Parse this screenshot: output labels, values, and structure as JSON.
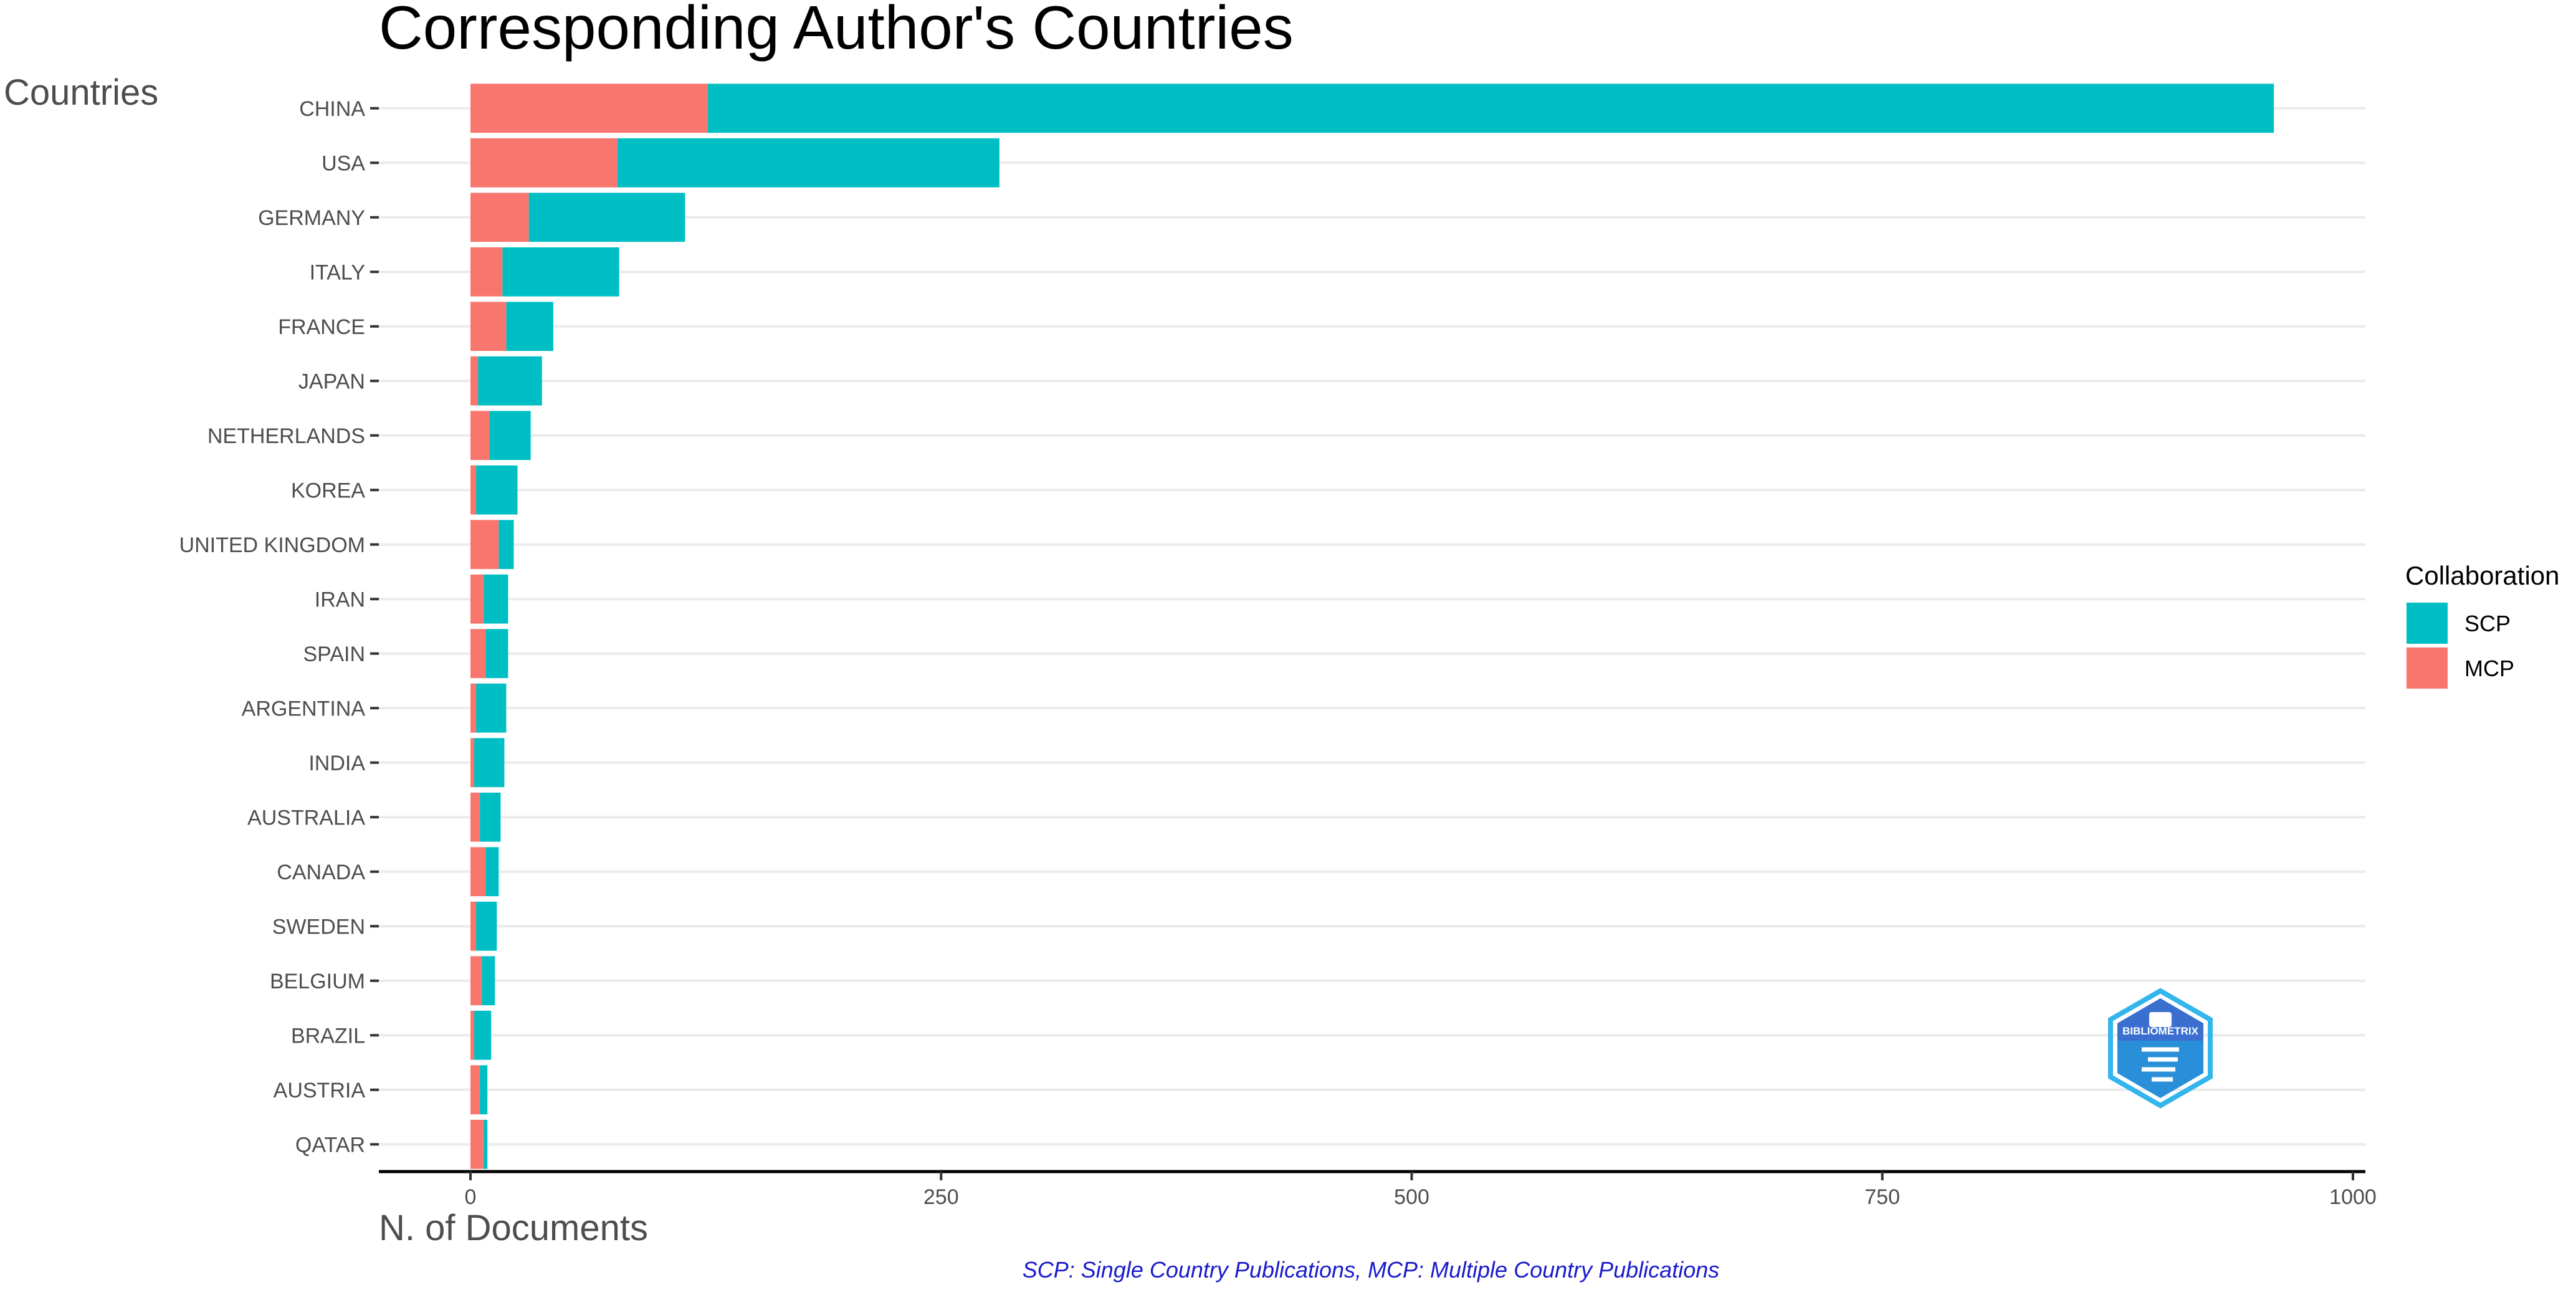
{
  "chart_data": {
    "type": "bar",
    "orientation": "horizontal",
    "stacked": true,
    "title": "Corresponding Author's Countries",
    "xlabel": "N. of Documents",
    "ylabel": "Countries",
    "xlim": [
      0,
      1000
    ],
    "xticks": [
      0,
      250,
      500,
      750,
      1000
    ],
    "grid": true,
    "legend_position": "right",
    "legend_title": "Collaboration",
    "categories": [
      "CHINA",
      "USA",
      "GERMANY",
      "ITALY",
      "FRANCE",
      "JAPAN",
      "NETHERLANDS",
      "KOREA",
      "UNITED KINGDOM",
      "IRAN",
      "SPAIN",
      "ARGENTINA",
      "INDIA",
      "AUSTRALIA",
      "CANADA",
      "SWEDEN",
      "BELGIUM",
      "BRAZIL",
      "AUSTRIA",
      "QATAR"
    ],
    "series": [
      {
        "name": "SCP",
        "color": "#00BFC4",
        "values": [
          832,
          203,
          83,
          62,
          25,
          34,
          22,
          22,
          8,
          13,
          12,
          16,
          16,
          11,
          7,
          11,
          7,
          9,
          4,
          2
        ]
      },
      {
        "name": "MCP",
        "color": "#F8766D",
        "values": [
          126,
          78,
          31,
          17,
          19,
          4,
          10,
          3,
          15,
          7,
          8,
          3,
          2,
          5,
          8,
          3,
          6,
          2,
          5,
          7
        ]
      }
    ],
    "caption": "SCP: Single Country Publications, MCP: Multiple Country Publications"
  },
  "logo": {
    "text": "BIBLIOMETRIX"
  }
}
